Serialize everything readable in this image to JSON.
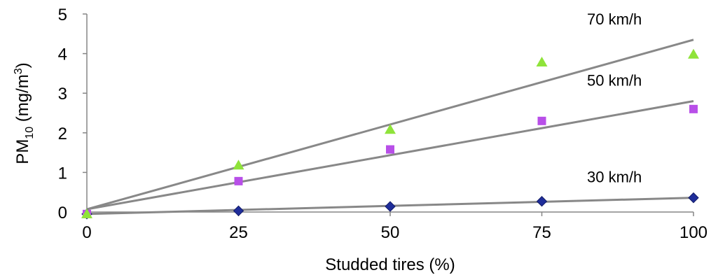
{
  "chart_data": {
    "type": "scatter",
    "xlabel": "Studded tires (%)",
    "ylabel": {
      "main": "PM",
      "sub": "10",
      "mid": " (mg/m",
      "sup": "3",
      "end": ")"
    },
    "xlim": [
      0,
      100
    ],
    "ylim": [
      0,
      5
    ],
    "x_ticks": [
      0,
      25,
      50,
      75,
      100
    ],
    "y_ticks": [
      0,
      1,
      2,
      3,
      4,
      5
    ],
    "grid": false,
    "x": [
      0,
      25,
      50,
      75,
      100
    ],
    "series": [
      {
        "name": "30 km/h",
        "marker": "diamond",
        "color": "#1f2d9a",
        "values": [
          -0.05,
          0.03,
          0.14,
          0.27,
          0.36
        ],
        "trend": [
          -0.05,
          0.36
        ]
      },
      {
        "name": "50 km/h",
        "marker": "square",
        "color": "#b84fe8",
        "values": [
          -0.05,
          0.78,
          1.58,
          2.3,
          2.6
        ],
        "trend": [
          0.07,
          2.8
        ]
      },
      {
        "name": "70 km/h",
        "marker": "triangle",
        "color": "#8fe33a",
        "values": [
          -0.05,
          1.18,
          2.08,
          3.78,
          3.98
        ],
        "trend": [
          0.07,
          4.35
        ]
      }
    ],
    "trendline_color": "#888888"
  }
}
